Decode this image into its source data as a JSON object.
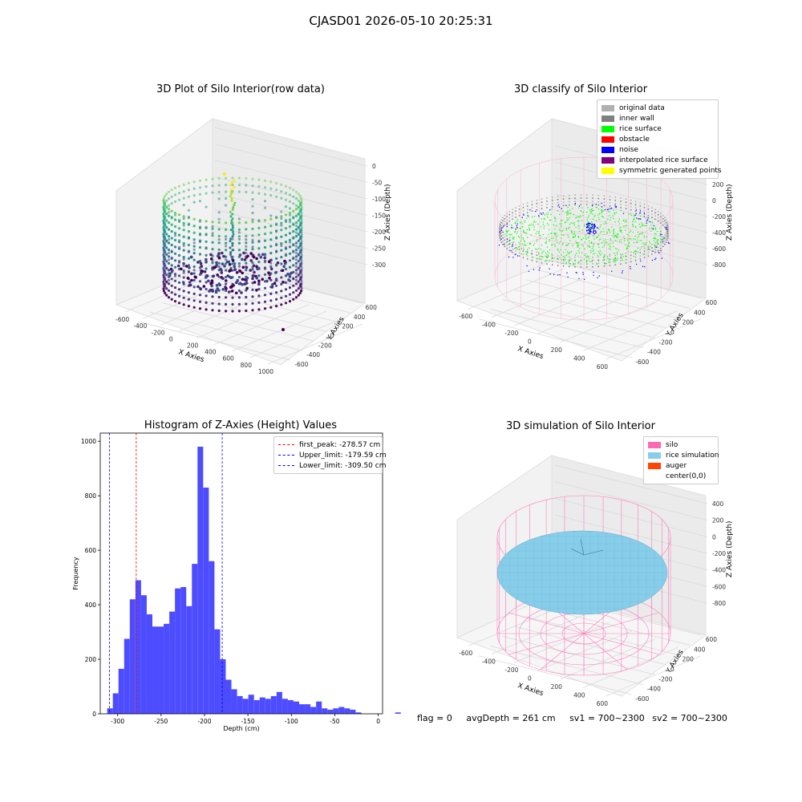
{
  "figure": {
    "suptitle": "CJASD01 2026-05-10 20:25:31"
  },
  "panels": {
    "raw": {
      "title": "3D Plot of Silo Interior(row data)",
      "xlabel": "X Axies",
      "ylabel": "Y Axies",
      "zlabel": "Z Axies (Depth)",
      "xticks": [
        "-600",
        "-400",
        "-200",
        "0",
        "200",
        "400",
        "600",
        "800",
        "1000"
      ],
      "yticks": [
        "-600",
        "-400",
        "-200",
        "0",
        "200",
        "400",
        "600"
      ],
      "zticks": [
        "0",
        "-50",
        "-100",
        "-150",
        "-200",
        "-250",
        "-300"
      ]
    },
    "classify": {
      "title": "3D classify of Silo Interior",
      "xlabel": "X Axies",
      "ylabel": "Y Axies",
      "zlabel": "Z Axies (Depth)",
      "xticks": [
        "-600",
        "-400",
        "-200",
        "0",
        "200",
        "400",
        "600"
      ],
      "yticks": [
        "-600",
        "-400",
        "-200",
        "0",
        "200",
        "400",
        "600"
      ],
      "zticks": [
        "200",
        "0",
        "-200",
        "-400",
        "-600",
        "-800"
      ],
      "legend": [
        {
          "label": "original data",
          "color": "#b0b0b0"
        },
        {
          "label": "inner wall",
          "color": "#808080"
        },
        {
          "label": "rice surface",
          "color": "#00ff00"
        },
        {
          "label": "obstacle",
          "color": "#ff0000"
        },
        {
          "label": "noise",
          "color": "#0000ff"
        },
        {
          "label": "interpolated rice surface",
          "color": "#800080"
        },
        {
          "label": "symmetric generated points",
          "color": "#ffff00"
        }
      ]
    },
    "histogram": {
      "title": "Histogram of Z-Axies (Height) Values",
      "xlabel": "Depth (cm)",
      "ylabel": "Frequency",
      "legend": [
        {
          "label": "first_peak: -278.57 cm",
          "color": "#ff0000"
        },
        {
          "label": "Upper_limit: -179.59 cm",
          "color": "#0000ff"
        },
        {
          "label": "Lower_limit: -309.50 cm",
          "color": "#0000ff"
        }
      ]
    },
    "simulation": {
      "title": "3D simulation of Silo Interior",
      "xlabel": "X Axies",
      "ylabel": "Y Axies",
      "zlabel": "Z Axies (Depth)",
      "xticks": [
        "-600",
        "-400",
        "-200",
        "0",
        "200",
        "400",
        "600"
      ],
      "yticks": [
        "-600",
        "-400",
        "-200",
        "0",
        "200",
        "400",
        "600"
      ],
      "zticks": [
        "400",
        "200",
        "0",
        "-200",
        "-400",
        "-600",
        "-800"
      ],
      "legend": [
        {
          "label": "silo",
          "color": "#ff69b4"
        },
        {
          "label": "rice simulation",
          "color": "#87ceeb"
        },
        {
          "label": "auger",
          "color": "#ff4500"
        },
        {
          "label": "center(0,0)",
          "color": "#ffffff"
        }
      ]
    }
  },
  "footer": {
    "flag": "flag = 0",
    "avg": "avgDepth = 261 cm",
    "sv1": "sv1 = 700~2300",
    "sv2": "sv2 = 700~2300"
  },
  "chart_data": [
    {
      "type": "scatter",
      "title": "3D Plot of Silo Interior(row data)",
      "xlabel": "X Axies",
      "ylabel": "Y Axies",
      "zlabel": "Z Axies (Depth)",
      "xlim": [
        -600,
        1000
      ],
      "ylim": [
        -600,
        600
      ],
      "zlim": [
        -320,
        10
      ],
      "colormap": "viridis"
    },
    {
      "type": "scatter",
      "title": "3D classify of Silo Interior",
      "xlabel": "X Axies",
      "ylabel": "Y Axies",
      "zlabel": "Z Axies (Depth)",
      "xlim": [
        -600,
        600
      ],
      "ylim": [
        -600,
        600
      ],
      "zlim": [
        -800,
        250
      ],
      "series": [
        {
          "name": "original data",
          "color": "#b0b0b0"
        },
        {
          "name": "inner wall",
          "color": "#808080"
        },
        {
          "name": "rice surface",
          "color": "#00ff00"
        },
        {
          "name": "obstacle",
          "color": "#ff0000"
        },
        {
          "name": "noise",
          "color": "#0000ff"
        },
        {
          "name": "interpolated rice surface",
          "color": "#800080"
        },
        {
          "name": "symmetric generated points",
          "color": "#ffff00"
        }
      ]
    },
    {
      "type": "bar",
      "title": "Histogram of Z-Axies (Height) Values",
      "xlabel": "Depth (cm)",
      "ylabel": "Frequency",
      "xlim": [
        -320,
        5
      ],
      "ylim": [
        0,
        1030
      ],
      "xticks": [
        -300,
        -250,
        -200,
        -150,
        -100,
        -50,
        0
      ],
      "yticks": [
        0,
        200,
        400,
        600,
        800,
        1000
      ],
      "bin_start": -312,
      "bin_width": 6.5,
      "values": [
        20,
        75,
        165,
        275,
        420,
        490,
        435,
        365,
        320,
        320,
        330,
        375,
        460,
        465,
        395,
        550,
        980,
        830,
        560,
        310,
        200,
        125,
        90,
        65,
        55,
        70,
        50,
        60,
        55,
        65,
        80,
        55,
        50,
        45,
        35,
        35,
        25,
        45,
        20,
        15,
        20,
        25,
        20,
        15,
        5,
        0,
        0,
        0,
        0,
        0,
        0,
        5
      ],
      "bar_color": "#4d4dff",
      "vlines": [
        {
          "name": "first_peak: -278.57 cm",
          "x": -278.57,
          "color": "#ff0000"
        },
        {
          "name": "Upper_limit: -179.59 cm",
          "x": -179.59,
          "color": "#0000ff"
        },
        {
          "name": "Lower_limit: -309.50 cm",
          "x": -309.5,
          "color": "#0000ff"
        }
      ],
      "legend": "top-right"
    },
    {
      "type": "scatter",
      "title": "3D simulation of Silo Interior",
      "xlabel": "X Axies",
      "ylabel": "Y Axies",
      "zlabel": "Z Axies (Depth)",
      "xlim": [
        -600,
        600
      ],
      "ylim": [
        -600,
        600
      ],
      "zlim": [
        -850,
        450
      ],
      "series": [
        {
          "name": "silo",
          "color": "#ff69b4"
        },
        {
          "name": "rice simulation",
          "color": "#87ceeb"
        },
        {
          "name": "auger",
          "color": "#ff4500"
        },
        {
          "name": "center(0,0)",
          "color": "#ffffff"
        }
      ]
    }
  ]
}
